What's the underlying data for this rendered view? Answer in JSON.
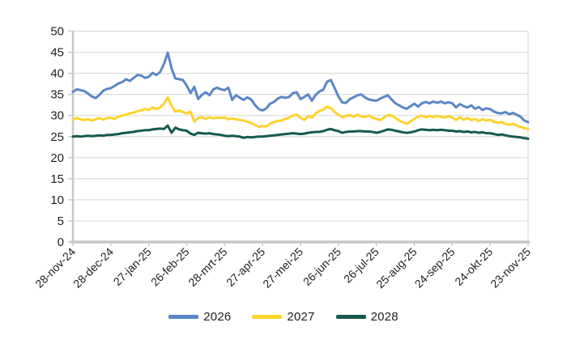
{
  "chart_data": {
    "type": "line",
    "title": "",
    "x_axis": {
      "tick_labels": [
        "28-nov-24",
        "28-dec-24",
        "27-jan-25",
        "26-feb-25",
        "28-mrt-25",
        "27-apr-25",
        "27-mei-25",
        "26-jun-25",
        "26-jul-25",
        "25-aug-25",
        "24-sep-25",
        "24-okt-25",
        "23-nov-25"
      ],
      "label_rotation_deg": -45,
      "range_days": [
        0,
        360
      ]
    },
    "y_axis": {
      "min": 0,
      "max": 50,
      "step": 5,
      "tick_labels": [
        "0",
        "5",
        "10",
        "15",
        "20",
        "25",
        "30",
        "35",
        "40",
        "45",
        "50"
      ]
    },
    "grid": "horizontal",
    "legend_position": "bottom",
    "sample_step_days": 3,
    "series": [
      {
        "name": "2026",
        "color": "#5B87C5",
        "values": [
          35.6,
          36.2,
          36.0,
          35.8,
          35.2,
          34.5,
          34.1,
          34.9,
          35.9,
          36.3,
          36.5,
          37.0,
          37.6,
          37.9,
          38.6,
          38.2,
          38.9,
          39.6,
          39.5,
          38.9,
          39.2,
          40.1,
          39.6,
          40.3,
          42.2,
          44.9,
          41.2,
          38.8,
          38.6,
          38.4,
          37.1,
          35.3,
          36.8,
          33.9,
          34.9,
          35.5,
          34.8,
          36.2,
          36.6,
          36.2,
          36.0,
          36.6,
          33.7,
          34.8,
          34.2,
          33.7,
          34.3,
          33.8,
          32.5,
          31.5,
          31.2,
          31.7,
          32.8,
          33.2,
          34.0,
          34.4,
          34.2,
          34.4,
          35.3,
          35.5,
          33.9,
          34.4,
          35.0,
          33.5,
          34.9,
          35.7,
          36.1,
          38.0,
          38.4,
          36.5,
          34.5,
          33.1,
          33.0,
          33.9,
          34.3,
          34.8,
          35.0,
          34.3,
          33.8,
          33.6,
          33.5,
          34.0,
          34.4,
          34.8,
          33.8,
          32.9,
          32.4,
          31.9,
          31.6,
          32.2,
          32.8,
          32.1,
          32.9,
          33.2,
          32.9,
          33.3,
          33.0,
          33.3,
          32.9,
          33.1,
          32.9,
          31.9,
          32.7,
          32.2,
          31.9,
          32.4,
          31.6,
          32.0,
          31.3,
          31.7,
          31.5,
          30.9,
          30.6,
          30.5,
          30.8,
          30.3,
          30.6,
          30.2,
          29.7,
          28.8,
          28.4
        ]
      },
      {
        "name": "2027",
        "color": "#FFD32D",
        "values": [
          29.0,
          29.4,
          29.1,
          28.9,
          29.1,
          28.8,
          29.1,
          29.4,
          29.0,
          29.4,
          29.5,
          29.2,
          29.7,
          30.0,
          30.2,
          30.5,
          30.7,
          31.0,
          31.2,
          31.6,
          31.3,
          31.9,
          31.5,
          31.9,
          32.8,
          34.3,
          32.3,
          30.9,
          31.2,
          30.8,
          30.5,
          30.9,
          28.5,
          29.4,
          29.6,
          29.2,
          29.6,
          29.3,
          29.5,
          29.4,
          29.5,
          29.1,
          29.3,
          29.1,
          28.9,
          28.8,
          28.5,
          28.2,
          27.8,
          27.3,
          27.5,
          27.4,
          28.1,
          28.4,
          28.7,
          28.8,
          29.2,
          29.5,
          30.0,
          30.2,
          29.5,
          28.9,
          29.9,
          29.5,
          30.5,
          31.1,
          31.4,
          32.1,
          31.7,
          30.8,
          30.2,
          29.6,
          29.9,
          30.1,
          29.7,
          30.2,
          29.8,
          29.6,
          30.0,
          29.5,
          29.2,
          28.9,
          29.5,
          30.1,
          30.0,
          29.4,
          28.8,
          28.4,
          28.0,
          28.6,
          29.2,
          29.7,
          30.0,
          29.6,
          29.9,
          29.6,
          29.9,
          29.7,
          29.5,
          29.8,
          29.5,
          28.9,
          29.6,
          29.0,
          29.4,
          28.9,
          29.2,
          28.7,
          29.1,
          28.8,
          29.0,
          28.5,
          28.3,
          28.4,
          28.0,
          27.8,
          28.0,
          27.6,
          27.3,
          27.0,
          26.8
        ]
      },
      {
        "name": "2028",
        "color": "#17594F",
        "values": [
          25.0,
          25.1,
          25.0,
          25.1,
          25.2,
          25.1,
          25.2,
          25.3,
          25.2,
          25.4,
          25.4,
          25.5,
          25.6,
          25.8,
          25.9,
          26.0,
          26.1,
          26.3,
          26.4,
          26.5,
          26.5,
          26.7,
          26.8,
          26.9,
          26.8,
          27.6,
          25.9,
          27.1,
          26.7,
          26.5,
          26.4,
          25.7,
          25.4,
          25.9,
          25.8,
          25.7,
          25.8,
          25.6,
          25.5,
          25.4,
          25.2,
          25.1,
          25.2,
          25.1,
          25.0,
          24.7,
          24.9,
          24.8,
          24.9,
          25.0,
          25.0,
          25.1,
          25.2,
          25.3,
          25.4,
          25.5,
          25.6,
          25.7,
          25.8,
          25.7,
          25.6,
          25.7,
          25.9,
          26.0,
          26.1,
          26.1,
          26.3,
          26.6,
          26.8,
          26.5,
          26.3,
          25.9,
          26.1,
          26.2,
          26.2,
          26.3,
          26.3,
          26.2,
          26.2,
          26.1,
          25.9,
          26.1,
          26.4,
          26.7,
          26.6,
          26.4,
          26.2,
          26.0,
          25.9,
          26.0,
          26.2,
          26.5,
          26.7,
          26.6,
          26.5,
          26.6,
          26.5,
          26.6,
          26.5,
          26.4,
          26.4,
          26.2,
          26.3,
          26.1,
          26.2,
          26.0,
          26.1,
          25.9,
          26.0,
          25.8,
          25.8,
          25.6,
          25.4,
          25.5,
          25.3,
          25.1,
          25.0,
          24.9,
          24.8,
          24.6,
          24.5
        ]
      }
    ]
  },
  "style": {
    "background": "#FFFFFF",
    "gridline_color": "#DBDBDB",
    "axis_color": "#C8C8C8",
    "text_color": "#1F1F1F"
  }
}
